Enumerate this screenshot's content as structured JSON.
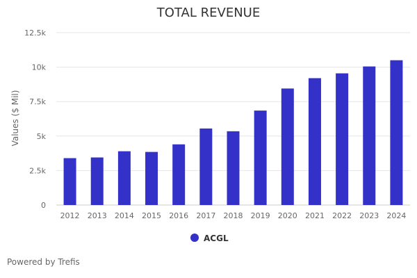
{
  "chart_data": {
    "type": "bar",
    "title": "TOTAL REVENUE",
    "xlabel": "",
    "ylabel": "Values ($ Mil)",
    "ylim": [
      0,
      12500
    ],
    "yticks": [
      0,
      2500,
      5000,
      7500,
      10000,
      12500
    ],
    "ytick_labels": [
      "0",
      "2.5k",
      "5k",
      "7.5k",
      "10k",
      "12.5k"
    ],
    "grid": true,
    "legend_position": "bottom-center",
    "categories": [
      "2012",
      "2013",
      "2014",
      "2015",
      "2016",
      "2017",
      "2018",
      "2019",
      "2020",
      "2021",
      "2022",
      "2023",
      "2024"
    ],
    "series": [
      {
        "name": "ACGL",
        "color": "#3431c9",
        "values": [
          3400,
          3450,
          3900,
          3850,
          4400,
          5550,
          5350,
          6850,
          8450,
          9200,
          9550,
          10050,
          10500
        ]
      }
    ]
  },
  "footer": {
    "text": "Powered by Trefis"
  }
}
